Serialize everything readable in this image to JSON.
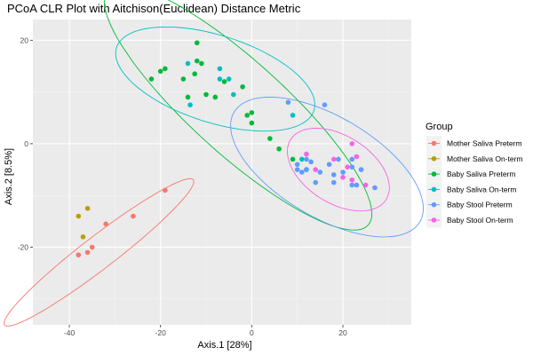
{
  "chart_data": {
    "type": "scatter",
    "title": "PCoA CLR Plot with Aitchison(Euclidean) Distance Metric",
    "xlabel": "Axis.1   [28%]",
    "ylabel": "Axis.2   [8.5%]",
    "xlim": [
      -48,
      35
    ],
    "ylim": [
      -35,
      24
    ],
    "x_ticks": [
      -40,
      -20,
      0,
      20
    ],
    "y_ticks": [
      -20,
      0,
      20
    ],
    "grid": true,
    "legend": {
      "title": "Group",
      "position": "right"
    },
    "series": [
      {
        "name": "Mother Saliva Preterm",
        "color": "#F8766D",
        "points": [
          [
            -19,
            -9
          ],
          [
            -26,
            -14
          ],
          [
            -32,
            -15.5
          ],
          [
            -35,
            -20
          ],
          [
            -36,
            -21
          ],
          [
            -38,
            -21.5
          ]
        ],
        "ellipse": {
          "center": [
            -33.5,
            -21
          ],
          "semi_axes": [
            25,
            3.3
          ],
          "angle_deg": 34
        }
      },
      {
        "name": "Mother Saliva On-term",
        "color": "#B79F00",
        "points": [
          [
            -36,
            -12.5
          ],
          [
            -38,
            -14
          ],
          [
            -37,
            -18
          ]
        ]
      },
      {
        "name": "Baby Saliva Preterm",
        "color": "#00BA38",
        "points": [
          [
            -12,
            19.5
          ],
          [
            -12,
            16
          ],
          [
            -11,
            15.5
          ],
          [
            -19,
            14.5
          ],
          [
            -20,
            14
          ],
          [
            -12.5,
            13.5
          ],
          [
            -15,
            12.5
          ],
          [
            -22,
            12.5
          ],
          [
            -6,
            12
          ],
          [
            -2,
            11
          ],
          [
            -8,
            9
          ],
          [
            -10,
            9.5
          ],
          [
            -14,
            9
          ],
          [
            -1,
            5.5
          ],
          [
            0,
            6
          ],
          [
            0,
            4
          ],
          [
            4,
            1
          ],
          [
            6,
            -1
          ],
          [
            9,
            -3
          ]
        ],
        "ellipse": {
          "center": [
            -3,
            7
          ],
          "semi_axes": [
            36.5,
            9.5
          ],
          "angle_deg": -38
        }
      },
      {
        "name": "Baby Saliva On-term",
        "color": "#00BFC4",
        "points": [
          [
            -14,
            15.5
          ],
          [
            -7,
            14.5
          ],
          [
            -7,
            12.5
          ],
          [
            -5,
            12.5
          ],
          [
            -4,
            9.5
          ],
          [
            -13.5,
            7.5
          ],
          [
            9,
            5.5
          ],
          [
            11,
            -3
          ],
          [
            12,
            -5
          ]
        ],
        "ellipse": {
          "center": [
            -8,
            12.5
          ],
          "semi_axes": [
            22.5,
            8.5
          ],
          "angle_deg": -15
        }
      },
      {
        "name": "Baby Stool Preterm",
        "color": "#619CFF",
        "points": [
          [
            8,
            8
          ],
          [
            16,
            7.5
          ],
          [
            12,
            -3
          ],
          [
            13,
            -3.5
          ],
          [
            10,
            -4
          ],
          [
            17,
            -4
          ],
          [
            19,
            -3
          ],
          [
            22,
            -3
          ],
          [
            10,
            -5
          ],
          [
            11,
            -5.5
          ],
          [
            12,
            -5
          ],
          [
            15,
            -5.5
          ],
          [
            18,
            -6
          ],
          [
            20,
            -5.5
          ],
          [
            22,
            -4.5
          ],
          [
            24,
            -5
          ],
          [
            14,
            -7.5
          ],
          [
            18,
            -7.5
          ],
          [
            22,
            -8
          ],
          [
            23,
            -8
          ],
          [
            27,
            -8.5
          ]
        ],
        "ellipse": {
          "center": [
            16.5,
            -4.5
          ],
          "semi_axes": [
            23,
            10
          ],
          "angle_deg": -26
        }
      },
      {
        "name": "Baby Stool On-term",
        "color": "#F564E3",
        "points": [
          [
            22,
            0
          ],
          [
            12,
            -2
          ],
          [
            18,
            -3
          ],
          [
            23,
            -2.5
          ],
          [
            21,
            -4.5
          ],
          [
            14,
            -5
          ],
          [
            20,
            -6.5
          ],
          [
            22,
            -7
          ],
          [
            25,
            -8
          ]
        ],
        "ellipse": {
          "center": [
            19,
            -5
          ],
          "semi_axes": [
            12,
            6.7
          ],
          "angle_deg": -26
        }
      }
    ]
  }
}
